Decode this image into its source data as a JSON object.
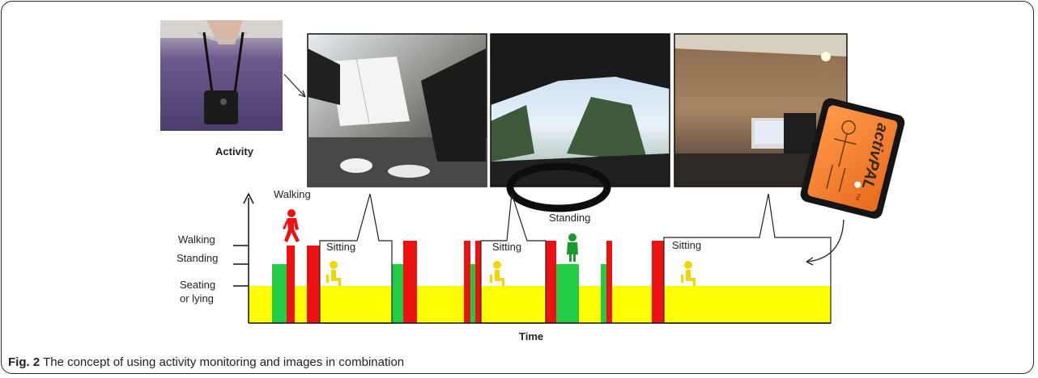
{
  "labels": {
    "activity": "Activity",
    "time": "Time",
    "walking_axis": "Walking",
    "standing_axis": "Standing",
    "seating_axis_line1": "Seating",
    "seating_axis_line2": "or lying",
    "walking_icon": "Walking",
    "standing_icon": "Standing",
    "sitting_1": "Sitting",
    "sitting_2": "Sitting",
    "sitting_3": "Sitting"
  },
  "device": {
    "brand": "activPAL",
    "tm": "TM"
  },
  "caption": {
    "fig_label": "Fig. 2",
    "text": " The concept of using activity monitoring and images in combination"
  },
  "photos": [
    {
      "name": "wearable-camera-photo"
    },
    {
      "name": "reading-menu-photo"
    },
    {
      "name": "driving-car-photo"
    },
    {
      "name": "office-computer-photo"
    }
  ],
  "colors": {
    "walking": "#ee1111",
    "standing": "#22cc44",
    "sitting": "#ffff00",
    "standing_icon": "#1a9a2a",
    "sitting_icon": "#f2d600",
    "walking_icon": "#ee1111"
  }
}
